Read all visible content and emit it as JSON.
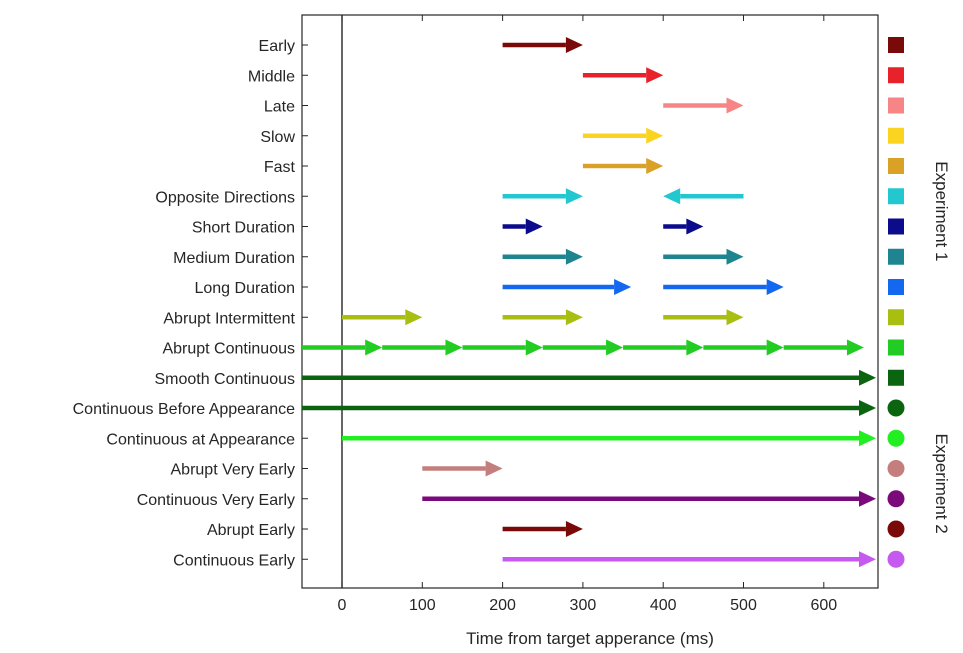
{
  "chart_data": {
    "type": "timeline",
    "xlabel": "Time from target apperance (ms)",
    "xlim": [
      -50,
      670
    ],
    "xticks": [
      "0",
      "100",
      "200",
      "300",
      "400",
      "500",
      "600"
    ],
    "xtick_values": [
      0,
      100,
      200,
      300,
      400,
      500,
      600
    ],
    "reference_line_x": 0,
    "experiments": [
      {
        "label": "Experiment 1",
        "rows": [
          0,
          12
        ]
      },
      {
        "label": "Experiment 2",
        "rows": [
          12,
          18
        ]
      }
    ],
    "conditions": [
      {
        "label": "Early",
        "color": "#7a0a0a",
        "marker": "square",
        "segments": [
          [
            200,
            300
          ]
        ]
      },
      {
        "label": "Middle",
        "color": "#e8222a",
        "marker": "square",
        "segments": [
          [
            300,
            400
          ]
        ]
      },
      {
        "label": "Late",
        "color": "#f78585",
        "marker": "square",
        "segments": [
          [
            400,
            500
          ]
        ]
      },
      {
        "label": "Slow",
        "color": "#fbd422",
        "marker": "square",
        "segments": [
          [
            300,
            400
          ]
        ]
      },
      {
        "label": "Fast",
        "color": "#d9a126",
        "marker": "square",
        "segments": [
          [
            300,
            400
          ]
        ]
      },
      {
        "label": "Opposite Directions",
        "color": "#22c7d0",
        "marker": "square",
        "segments": [
          [
            200,
            300
          ],
          [
            500,
            400
          ]
        ]
      },
      {
        "label": "Short Duration",
        "color": "#0b0b8c",
        "marker": "square",
        "segments": [
          [
            200,
            250
          ],
          [
            400,
            450
          ]
        ]
      },
      {
        "label": "Medium Duration",
        "color": "#1e8590",
        "marker": "square",
        "segments": [
          [
            200,
            300
          ],
          [
            400,
            500
          ]
        ]
      },
      {
        "label": "Long Duration",
        "color": "#1468f0",
        "marker": "square",
        "segments": [
          [
            200,
            360
          ],
          [
            400,
            550
          ]
        ]
      },
      {
        "label": "Abrupt Intermittent",
        "color": "#a8bf12",
        "marker": "square",
        "segments": [
          [
            0,
            100
          ],
          [
            200,
            300
          ],
          [
            400,
            500
          ]
        ]
      },
      {
        "label": "Abrupt Continuous",
        "color": "#22cc22",
        "marker": "square",
        "segments": [
          [
            -50,
            50
          ],
          [
            50,
            150
          ],
          [
            150,
            250
          ],
          [
            250,
            350
          ],
          [
            350,
            450
          ],
          [
            450,
            550
          ],
          [
            550,
            650
          ]
        ]
      },
      {
        "label": "Smooth Continuous",
        "color": "#0a6410",
        "marker": "square",
        "segments": [
          [
            -50,
            665
          ]
        ]
      },
      {
        "label": "Continuous Before Appearance",
        "color": "#0a6410",
        "marker": "circle",
        "segments": [
          [
            -50,
            665
          ]
        ]
      },
      {
        "label": "Continuous at Appearance",
        "color": "#22ee22",
        "marker": "circle",
        "segments": [
          [
            0,
            665
          ]
        ]
      },
      {
        "label": "Abrupt Very Early",
        "color": "#c47e7e",
        "marker": "circle",
        "segments": [
          [
            100,
            200
          ]
        ]
      },
      {
        "label": "Continuous Very Early",
        "color": "#7a0a7a",
        "marker": "circle",
        "segments": [
          [
            100,
            665
          ]
        ]
      },
      {
        "label": "Abrupt Early",
        "color": "#7a0a0a",
        "marker": "circle",
        "segments": [
          [
            200,
            300
          ]
        ]
      },
      {
        "label": "Continuous Early",
        "color": "#c65af0",
        "marker": "circle",
        "segments": [
          [
            200,
            665
          ]
        ]
      }
    ]
  }
}
